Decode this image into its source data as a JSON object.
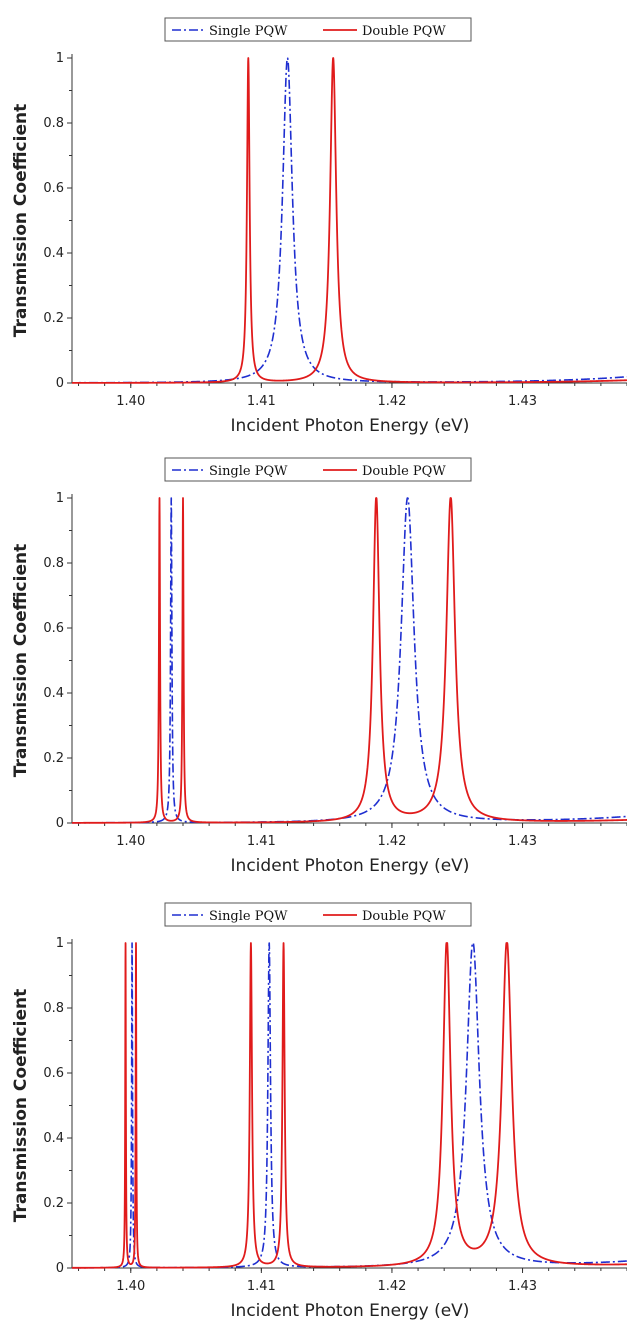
{
  "legend": {
    "single": "Single PQW",
    "double": "Double PQW"
  },
  "colors": {
    "single": "#1f2fd0",
    "double": "#e01b1b",
    "axis": "#333333"
  },
  "chart_data": [
    {
      "type": "line",
      "xlabel": "Incident Photon Energy (eV)",
      "ylabel": "Transmission Coefficient",
      "xlim": [
        1.3955,
        1.438
      ],
      "ylim": [
        0,
        1
      ],
      "xticks": [
        "1.40",
        "1.41",
        "1.42",
        "1.43"
      ],
      "yticks": [
        "0",
        "0.2",
        "0.4",
        "0.6",
        "0.8",
        "1"
      ],
      "legend_position": "top",
      "series": [
        {
          "name": "Single PQW",
          "style": "dash-dot",
          "peaks": [
            {
              "x": 1.412,
              "y": 1.0,
              "width": 0.00045
            }
          ],
          "background": "rising"
        },
        {
          "name": "Double PQW",
          "style": "solid",
          "peaks": [
            {
              "x": 1.409,
              "y": 1.0,
              "width": 0.00012
            },
            {
              "x": 1.4155,
              "y": 1.0,
              "width": 0.00028
            }
          ],
          "background": "rising"
        }
      ]
    },
    {
      "type": "line",
      "xlabel": "Incident Photon Energy (eV)",
      "ylabel": "Transmission Coefficient",
      "xlim": [
        1.3955,
        1.438
      ],
      "ylim": [
        0,
        1
      ],
      "xticks": [
        "1.40",
        "1.41",
        "1.42",
        "1.43"
      ],
      "yticks": [
        "0",
        "0.2",
        "0.4",
        "0.6",
        "0.8",
        "1"
      ],
      "legend_position": "top",
      "series": [
        {
          "name": "Single PQW",
          "style": "dash-dot",
          "peaks": [
            {
              "x": 1.4031,
              "y": 1.0,
              "width": 6e-05
            },
            {
              "x": 1.4212,
              "y": 1.0,
              "width": 0.0006
            }
          ],
          "background": "rising"
        },
        {
          "name": "Double PQW",
          "style": "solid",
          "peaks": [
            {
              "x": 1.4022,
              "y": 1.0,
              "width": 5e-05
            },
            {
              "x": 1.404,
              "y": 1.0,
              "width": 5e-05
            },
            {
              "x": 1.4188,
              "y": 1.0,
              "width": 0.0003
            },
            {
              "x": 1.4245,
              "y": 1.0,
              "width": 0.0004
            }
          ],
          "background": "rising"
        }
      ]
    },
    {
      "type": "line",
      "xlabel": "Incident Photon Energy (eV)",
      "ylabel": "Transmission Coefficient",
      "xlim": [
        1.3955,
        1.438
      ],
      "ylim": [
        0,
        1
      ],
      "xticks": [
        "1.40",
        "1.41",
        "1.42",
        "1.43"
      ],
      "yticks": [
        "0",
        "0.2",
        "0.4",
        "0.6",
        "0.8",
        "1"
      ],
      "legend_position": "top",
      "series": [
        {
          "name": "Single PQW",
          "style": "dash-dot",
          "peaks": [
            {
              "x": 1.4001,
              "y": 1.0,
              "width": 4e-05
            },
            {
              "x": 1.4106,
              "y": 1.0,
              "width": 0.00012
            },
            {
              "x": 1.4262,
              "y": 1.0,
              "width": 0.0006
            }
          ],
          "background": "rising"
        },
        {
          "name": "Double PQW",
          "style": "solid",
          "peaks": [
            {
              "x": 1.3996,
              "y": 1.0,
              "width": 3e-05
            },
            {
              "x": 1.4004,
              "y": 1.0,
              "width": 3e-05
            },
            {
              "x": 1.4092,
              "y": 1.0,
              "width": 0.0001
            },
            {
              "x": 1.4117,
              "y": 1.0,
              "width": 0.0001
            },
            {
              "x": 1.4242,
              "y": 1.0,
              "width": 0.00035
            },
            {
              "x": 1.4288,
              "y": 1.0,
              "width": 0.00045
            }
          ],
          "background": "rising"
        }
      ]
    }
  ]
}
